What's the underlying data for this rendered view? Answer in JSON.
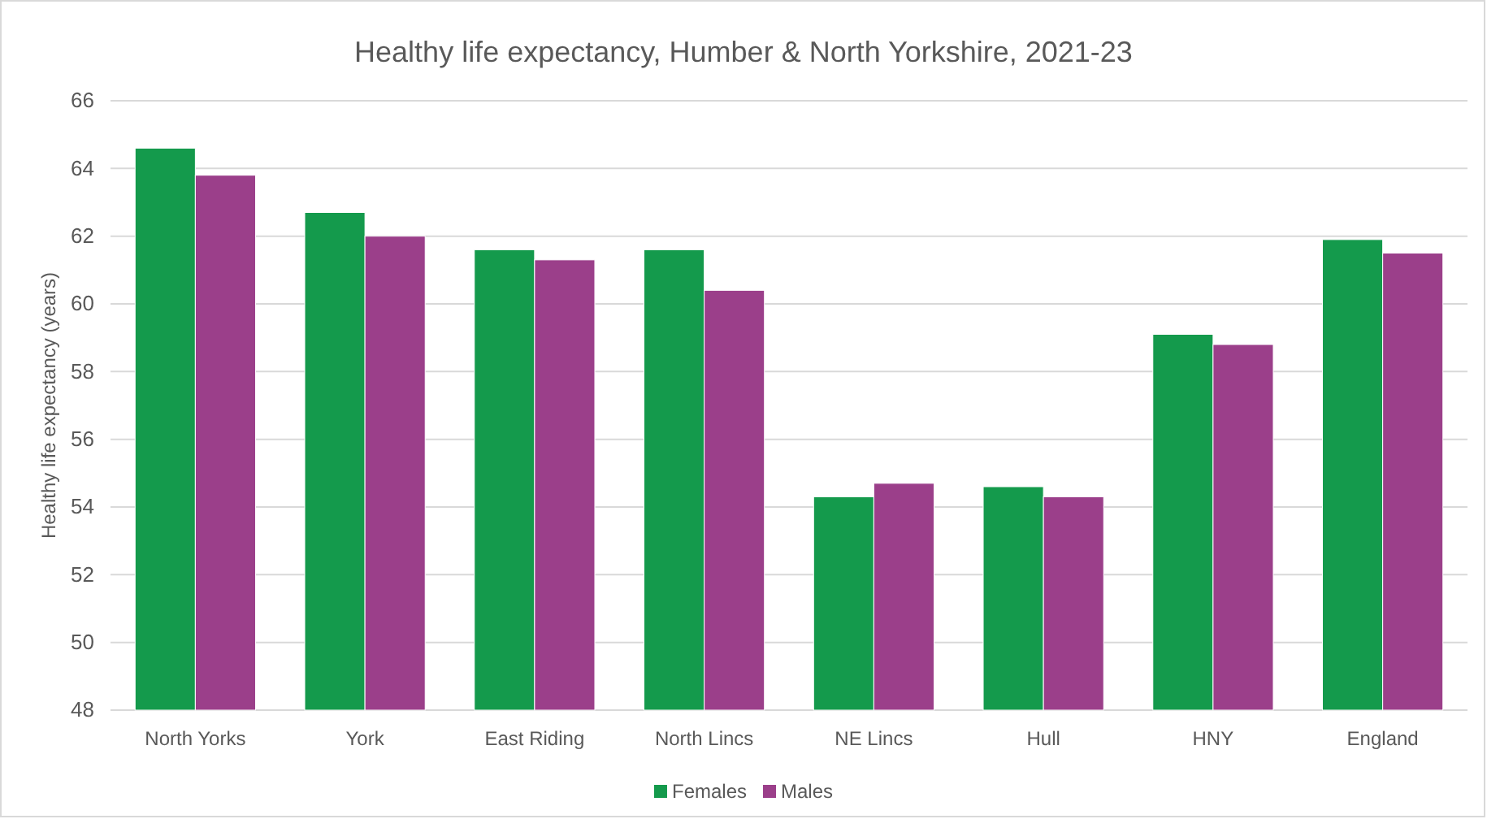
{
  "chart_data": {
    "type": "bar",
    "title": "Healthy life expectancy, Humber & North Yorkshire, 2021-23",
    "ylabel": "Healthy life expectancy (years)",
    "categories": [
      "North Yorks",
      "York",
      "East Riding",
      "North Lincs",
      "NE Lincs",
      "Hull",
      "HNY",
      "England"
    ],
    "series": [
      {
        "name": "Females",
        "color": "#149a4c",
        "values": [
          64.6,
          62.7,
          61.6,
          61.6,
          54.3,
          54.6,
          59.1,
          61.9
        ]
      },
      {
        "name": "Males",
        "color": "#9b3f8a",
        "values": [
          63.8,
          62.0,
          61.3,
          60.4,
          54.7,
          54.3,
          58.8,
          61.5
        ]
      }
    ],
    "ylim": [
      48,
      66
    ],
    "yticks": [
      48,
      50,
      52,
      54,
      56,
      58,
      60,
      62,
      64,
      66
    ],
    "grid": "y",
    "legend": "bottom"
  }
}
